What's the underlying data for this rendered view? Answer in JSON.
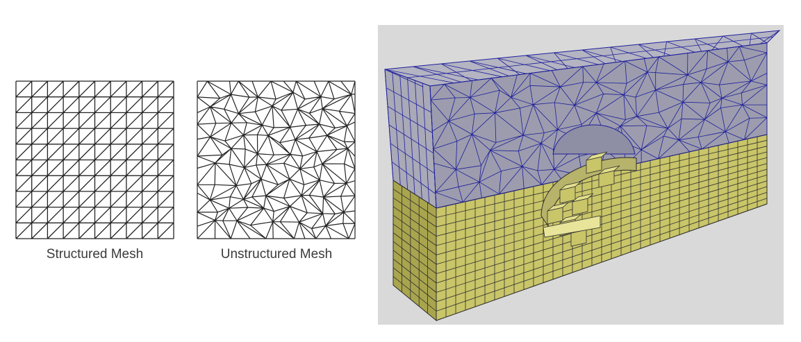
{
  "figure": {
    "structured_caption": "Structured Mesh",
    "unstructured_caption": "Unstructured Mesh"
  },
  "colors": {
    "mesh_line": "#222222",
    "render_background": "#d9d9d9",
    "unstructured_fill_front": "#9c9cae",
    "unstructured_fill_top": "#b4b4c2",
    "unstructured_wire": "#1d1d9a",
    "structured_fill_front": "#c9c569",
    "structured_fill_side": "#a9a54e",
    "structured_wire": "#2d2d2d"
  },
  "icons": [
    "structured-mesh-diagram",
    "unstructured-mesh-diagram",
    "hybrid-mesh-3d-render"
  ]
}
